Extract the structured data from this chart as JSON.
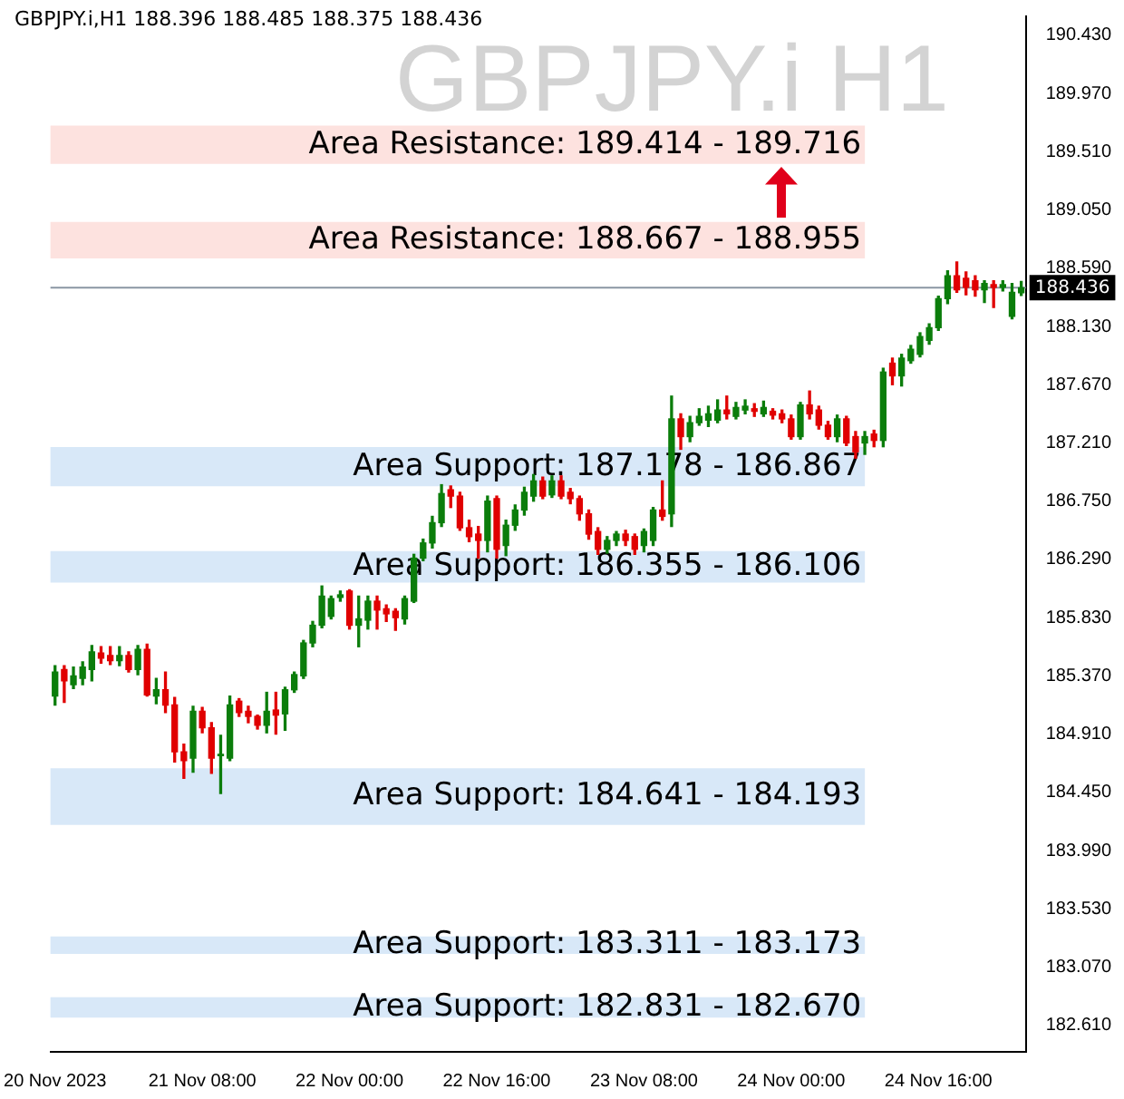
{
  "chart_data": {
    "type": "candlestick",
    "title": "GBPJPY.i,H1 188.396 188.485 188.375 188.436",
    "subtitle": "GBPJPY.i H1",
    "categories": [
      "20 Nov 2023",
      null,
      null,
      null,
      null,
      null,
      null,
      null,
      null,
      null,
      null,
      null,
      null,
      null,
      null,
      null,
      "21 Nov 08:00",
      null,
      null,
      null,
      null,
      null,
      null,
      null,
      null,
      null,
      null,
      null,
      null,
      null,
      null,
      null,
      "22 Nov 00:00",
      null,
      null,
      null,
      null,
      null,
      null,
      null,
      null,
      null,
      null,
      null,
      null,
      null,
      null,
      null,
      "22 Nov 16:00",
      null,
      null,
      null,
      null,
      null,
      null,
      null,
      null,
      null,
      null,
      null,
      null,
      null,
      null,
      null,
      "23 Nov 08:00",
      null,
      null,
      null,
      null,
      null,
      null,
      null,
      null,
      null,
      null,
      null,
      null,
      null,
      null,
      null,
      "24 Nov 00:00",
      null,
      null,
      null,
      null,
      null,
      null,
      null,
      null,
      null,
      null,
      null,
      null,
      null,
      null,
      null,
      "24 Nov 16:00",
      null,
      null,
      null,
      null,
      null,
      null,
      null,
      null,
      null
    ],
    "ohlc": [
      [
        185.21,
        185.45,
        185.14,
        185.4
      ],
      [
        185.42,
        185.45,
        185.16,
        185.33
      ],
      [
        185.3,
        185.44,
        185.27,
        185.37
      ],
      [
        185.35,
        185.48,
        185.3,
        185.44
      ],
      [
        185.42,
        185.61,
        185.33,
        185.56
      ],
      [
        185.55,
        185.6,
        185.47,
        185.51
      ],
      [
        185.53,
        185.6,
        185.46,
        185.49
      ],
      [
        185.49,
        185.6,
        185.45,
        185.53
      ],
      [
        185.53,
        185.56,
        185.4,
        185.42
      ],
      [
        185.42,
        185.61,
        185.38,
        185.58
      ],
      [
        185.58,
        185.62,
        185.21,
        185.22
      ],
      [
        185.21,
        185.35,
        185.15,
        185.26
      ],
      [
        185.26,
        185.4,
        185.08,
        185.14
      ],
      [
        185.14,
        185.2,
        184.69,
        184.77
      ],
      [
        184.77,
        184.83,
        184.56,
        184.7
      ],
      [
        184.72,
        185.13,
        184.61,
        185.09
      ],
      [
        185.09,
        185.12,
        184.92,
        184.96
      ],
      [
        184.96,
        185,
        184.6,
        184.72
      ],
      [
        184.74,
        184.9,
        184.44,
        184.75
      ],
      [
        184.72,
        185.21,
        184.7,
        185.14
      ],
      [
        185.17,
        185.19,
        185.05,
        185.08
      ],
      [
        185.09,
        185.13,
        185,
        185.05
      ],
      [
        185.05,
        185.06,
        184.95,
        184.98
      ],
      [
        184.98,
        185.24,
        184.92,
        185.09
      ],
      [
        185.1,
        185.24,
        184.91,
        185.06
      ],
      [
        185.07,
        185.28,
        184.94,
        185.26
      ],
      [
        185.26,
        185.4,
        185.24,
        185.38
      ],
      [
        185.37,
        185.65,
        185.35,
        185.63
      ],
      [
        185.63,
        185.8,
        185.6,
        185.77
      ],
      [
        185.77,
        186.08,
        185.75,
        186
      ],
      [
        185.84,
        186,
        185.82,
        185.98
      ],
      [
        185.99,
        186.04,
        185.96,
        186.01
      ],
      [
        186.04,
        186.05,
        185.74,
        185.77
      ],
      [
        185.77,
        186,
        185.6,
        185.82
      ],
      [
        185.81,
        186,
        185.74,
        185.96
      ],
      [
        185.96,
        186,
        185.74,
        185.89
      ],
      [
        185.9,
        185.93,
        185.8,
        185.86
      ],
      [
        185.88,
        185.9,
        185.73,
        185.83
      ],
      [
        185.82,
        186,
        185.78,
        185.98
      ],
      [
        185.96,
        186.33,
        185.95,
        186.3
      ],
      [
        186.3,
        186.45,
        186.28,
        186.42
      ],
      [
        186.42,
        186.63,
        186.38,
        186.58
      ],
      [
        186.58,
        186.88,
        186.55,
        186.81
      ],
      [
        186.84,
        186.87,
        186.7,
        186.79
      ],
      [
        186.79,
        186.82,
        186.52,
        186.54
      ],
      [
        186.54,
        186.6,
        186.43,
        186.47
      ],
      [
        186.49,
        186.55,
        186.3,
        186.44
      ],
      [
        186.44,
        186.79,
        186.35,
        186.75
      ],
      [
        186.77,
        186.79,
        186.3,
        186.37
      ],
      [
        186.4,
        186.6,
        186.32,
        186.56
      ],
      [
        186.56,
        186.72,
        186.52,
        186.68
      ],
      [
        186.68,
        186.86,
        186.64,
        186.82
      ],
      [
        186.79,
        186.96,
        186.75,
        186.91
      ],
      [
        186.91,
        186.94,
        186.77,
        186.79
      ],
      [
        186.8,
        186.95,
        186.78,
        186.91
      ],
      [
        186.91,
        186.95,
        186.77,
        186.79
      ],
      [
        186.82,
        186.85,
        186.73,
        186.77
      ],
      [
        186.77,
        186.79,
        186.6,
        186.65
      ],
      [
        186.65,
        186.68,
        186.45,
        186.49
      ],
      [
        186.51,
        186.54,
        186.33,
        186.37
      ],
      [
        186.37,
        186.47,
        186.34,
        186.44
      ],
      [
        186.44,
        186.51,
        186.4,
        186.49
      ],
      [
        186.49,
        186.52,
        186.4,
        186.44
      ],
      [
        186.47,
        186.49,
        186.33,
        186.37
      ],
      [
        186.4,
        186.53,
        186.35,
        186.51
      ],
      [
        186.44,
        186.7,
        186.4,
        186.68
      ],
      [
        186.68,
        186.91,
        186.6,
        186.63
      ],
      [
        186.65,
        187.58,
        186.55,
        187.4
      ],
      [
        187.4,
        187.44,
        187.16,
        187.26
      ],
      [
        187.26,
        187.42,
        187.22,
        187.37
      ],
      [
        187.37,
        187.48,
        187.35,
        187.42
      ],
      [
        187.39,
        187.5,
        187.34,
        187.44
      ],
      [
        187.39,
        187.55,
        187.37,
        187.47
      ],
      [
        187.47,
        187.58,
        187.4,
        187.44
      ],
      [
        187.42,
        187.53,
        187.4,
        187.49
      ],
      [
        187.47,
        187.55,
        187.44,
        187.5
      ],
      [
        187.48,
        187.52,
        187.42,
        187.46
      ],
      [
        187.44,
        187.54,
        187.42,
        187.49
      ],
      [
        187.46,
        187.48,
        187.4,
        187.43
      ],
      [
        187.44,
        187.47,
        187.37,
        187.4
      ],
      [
        187.4,
        187.43,
        187.24,
        187.26
      ],
      [
        187.26,
        187.53,
        187.24,
        187.51
      ],
      [
        187.51,
        187.62,
        187.4,
        187.44
      ],
      [
        187.47,
        187.5,
        187.32,
        187.35
      ],
      [
        187.35,
        187.38,
        187.24,
        187.26
      ],
      [
        187.26,
        187.43,
        187.22,
        187.4
      ],
      [
        187.4,
        187.42,
        187.19,
        187.21
      ],
      [
        187.26,
        187.3,
        187.09,
        187.14
      ],
      [
        187.21,
        187.3,
        187.12,
        187.26
      ],
      [
        187.28,
        187.31,
        187.18,
        187.23
      ],
      [
        187.23,
        187.8,
        187.18,
        187.77
      ],
      [
        187.84,
        187.88,
        187.67,
        187.74
      ],
      [
        187.74,
        187.91,
        187.66,
        187.88
      ],
      [
        187.86,
        187.98,
        187.84,
        187.95
      ],
      [
        187.91,
        188.08,
        187.89,
        188.05
      ],
      [
        188.02,
        188.15,
        187.99,
        188.12
      ],
      [
        188.12,
        188.37,
        188.1,
        188.35
      ],
      [
        188.35,
        188.57,
        188.31,
        188.53
      ],
      [
        188.53,
        188.64,
        188.4,
        188.42
      ],
      [
        188.51,
        188.56,
        188.38,
        188.44
      ],
      [
        188.49,
        188.53,
        188.37,
        188.42
      ],
      [
        188.42,
        188.49,
        188.32,
        188.47
      ],
      [
        188.46,
        188.49,
        188.28,
        188.44
      ],
      [
        188.44,
        188.49,
        188.41,
        188.46
      ],
      [
        188.21,
        188.47,
        188.19,
        188.4
      ],
      [
        188.396,
        188.485,
        188.375,
        188.436
      ]
    ],
    "ylim": [
      182.4,
      190.58
    ],
    "yticks": [
      {
        "value": 182.61,
        "label": "182.610"
      },
      {
        "value": 183.07,
        "label": "183.070"
      },
      {
        "value": 183.53,
        "label": "183.530"
      },
      {
        "value": 183.99,
        "label": "183.990"
      },
      {
        "value": 184.45,
        "label": "184.450"
      },
      {
        "value": 184.91,
        "label": "184.910"
      },
      {
        "value": 185.37,
        "label": "185.370"
      },
      {
        "value": 185.83,
        "label": "185.830"
      },
      {
        "value": 186.29,
        "label": "186.290"
      },
      {
        "value": 186.75,
        "label": "186.750"
      },
      {
        "value": 187.21,
        "label": "187.210"
      },
      {
        "value": 187.67,
        "label": "187.670"
      },
      {
        "value": 188.13,
        "label": "188.130"
      },
      {
        "value": 188.59,
        "label": "188.590"
      },
      {
        "value": 189.05,
        "label": "189.050"
      },
      {
        "value": 189.51,
        "label": "189.510"
      },
      {
        "value": 189.97,
        "label": "189.970"
      },
      {
        "value": 190.43,
        "label": "190.430"
      }
    ],
    "ref_lines": [
      {
        "axis": "y",
        "value": 188.436,
        "label": "188.436",
        "color": "#8a96a3"
      }
    ],
    "bands": [
      {
        "axis": "y",
        "from": 189.414,
        "to": 189.716,
        "label": "Area Resistance: 189.414 - 189.716",
        "color": "#fde2df"
      },
      {
        "axis": "y",
        "from": 188.667,
        "to": 188.955,
        "label": "Area Resistance: 188.667 - 188.955",
        "color": "#fde2df"
      },
      {
        "axis": "y",
        "from": 187.178,
        "to": 186.867,
        "label": "Area Support: 187.178 - 186.867",
        "color": "#d8e8f8"
      },
      {
        "axis": "y",
        "from": 186.355,
        "to": 186.106,
        "label": "Area Support: 186.355 - 186.106",
        "color": "#d8e8f8"
      },
      {
        "axis": "y",
        "from": 184.641,
        "to": 184.193,
        "label": "Area Support: 184.641 - 184.193",
        "color": "#d8e8f8"
      },
      {
        "axis": "y",
        "from": 183.311,
        "to": 183.173,
        "label": "Area Support: 183.311 - 183.173",
        "color": "#d8e8f8"
      },
      {
        "axis": "y",
        "from": 182.831,
        "to": 182.67,
        "label": "Area Support: 182.831 - 182.670",
        "color": "#d8e8f8"
      }
    ],
    "grid": false,
    "legend": false
  }
}
